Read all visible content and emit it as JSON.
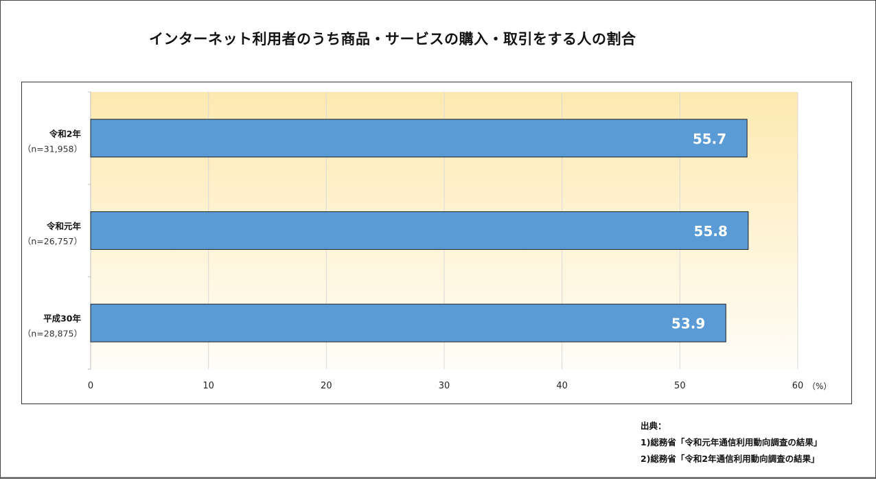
{
  "chart_data": {
    "type": "bar",
    "orientation": "horizontal",
    "title": "インターネット利用者のうち商品・サービスの購入・取引をする人の割合",
    "categories": [
      {
        "label": "令和2年",
        "n": "（n=31,958）"
      },
      {
        "label": "令和元年",
        "n": "（n=26,757）"
      },
      {
        "label": "平成30年",
        "n": "（n=28,875）"
      }
    ],
    "values": [
      55.7,
      55.8,
      53.9
    ],
    "value_labels": [
      "55.7",
      "55.8",
      "53.9"
    ],
    "x_ticks": [
      "0",
      "10",
      "20",
      "30",
      "40",
      "50",
      "60"
    ],
    "xlim": [
      0,
      60
    ],
    "unit": "（%）",
    "grid": true,
    "bar_color": "#5b9bd5",
    "value_label_color": "#ffffff",
    "plot_gradient_top": "#fde9b0",
    "plot_gradient_bottom": "#fffdf8"
  },
  "source": {
    "heading": "出典：",
    "lines": [
      "1)総務省「令和元年通信利用動向調査の結果」",
      "2)総務省「令和2年通信利用動向調査の結果」"
    ]
  }
}
